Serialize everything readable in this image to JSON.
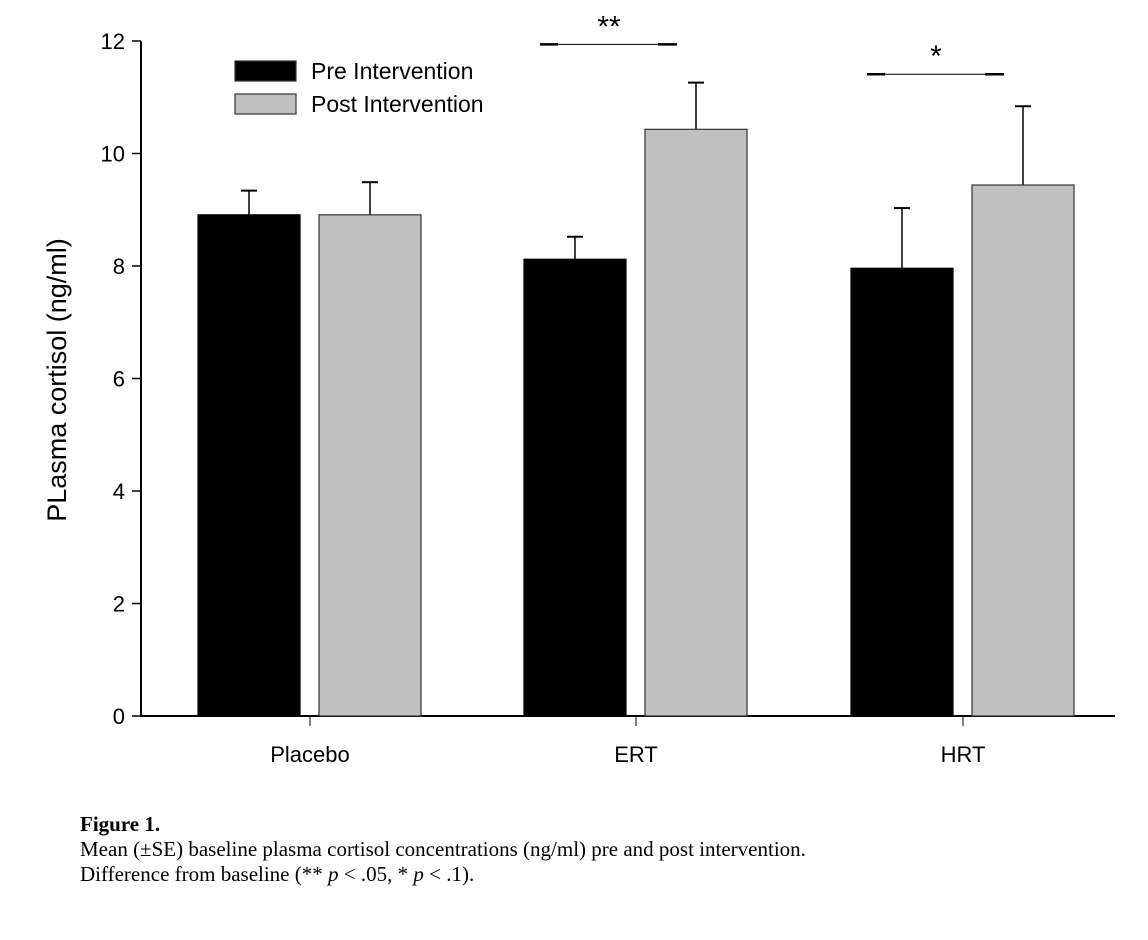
{
  "chart_data": {
    "type": "bar",
    "title": "",
    "xlabel": "",
    "ylabel": "PLasma cortisol (ng/ml)",
    "ylim": [
      0,
      12
    ],
    "yticks": [
      0,
      2,
      4,
      6,
      8,
      10,
      12
    ],
    "categories": [
      "Placebo",
      "ERT",
      "HRT"
    ],
    "legend_position": "top-left",
    "series": [
      {
        "name": "Pre Intervention",
        "color": "#000000",
        "values": [
          8.91,
          8.12,
          7.96
        ],
        "error_upper": [
          9.34,
          8.52,
          9.03
        ]
      },
      {
        "name": "Post Intervention",
        "color": "#c0c0c0",
        "values": [
          8.91,
          10.43,
          9.44
        ],
        "error_upper": [
          9.49,
          11.26,
          10.84
        ]
      }
    ],
    "annotations": [
      {
        "category": "ERT",
        "label": "**",
        "y": 11.94
      },
      {
        "category": "HRT",
        "label": "*",
        "y": 11.41
      }
    ]
  },
  "caption": {
    "label": "Figure 1.",
    "line1": "Mean (±SE) baseline plasma cortisol concentrations (ng/ml) pre and post intervention.",
    "line2_prefix": "Difference from baseline (** ",
    "p1": "p",
    "line2_mid": " < .05, * ",
    "p2": "p",
    "line2_suffix": " < .1)."
  }
}
